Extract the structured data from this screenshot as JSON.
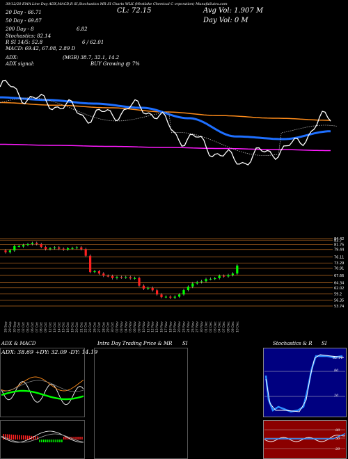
{
  "header": {
    "top_strip": "30/12/20  EMA Line Day ADX,MACD,R  SI,Stochastics MR  SI Charts WLK  (Westlake  Chemical C  orporation) MunafaSutra.com",
    "close_label": "CL: 72.15",
    "avg_vol": "Avg Vol: 1.907 M",
    "day_vol": "Day Vol: 0   M",
    "ma20": "20  Day - 66.71",
    "ma50": "50  Day - 69.87",
    "ma200": "200  Day - 8",
    "ma200_val": "6.82",
    "stochastics": "Stochastics: 82.14",
    "rsi_line": "R                SI 14/5: 52.8",
    "rsi_right": "6 / 62.01",
    "macd": "MACD: 69.42, 67.08, 2.89 D",
    "adx": "ADX:",
    "adx_vals": "(MGB) 38.7, 32.1, 14.2",
    "adx_signal": "ADX  signal:",
    "buy_signal": "BUY Growing @ 7%"
  },
  "colors": {
    "ema20": "#ffffff",
    "ema50": "#1e6fff",
    "ema100": "#ff8c1a",
    "ema200": "#ff1aff",
    "bull": "#00ff00",
    "bear": "#ff2020",
    "level": "#b86a20"
  },
  "chart_data": [
    {
      "type": "line",
      "name": "price-ema",
      "x_count": 120,
      "series": [
        {
          "name": "EMA200",
          "values": [
            65,
            64.8,
            64.6,
            64.4,
            64.2,
            64,
            63.8
          ]
        },
        {
          "name": "EMA100",
          "values": [
            73,
            72.5,
            72,
            71.2,
            70.5,
            70,
            69.6
          ]
        },
        {
          "name": "EMA50",
          "values": [
            74,
            73.5,
            72.8,
            72,
            70,
            66.5,
            66,
            67.5
          ]
        },
        {
          "name": "EMA20",
          "values": [
            76,
            73,
            70.5,
            72,
            66,
            62,
            64,
            70
          ]
        }
      ]
    },
    {
      "type": "candlestick",
      "name": "daily-candles",
      "categories": [
        "26 Sep",
        "29 Sep",
        "30 Sep",
        "01 Oct",
        "02 Oct",
        "05 Oct",
        "06 Oct",
        "07 Oct",
        "08 Oct",
        "09 Oct",
        "12 Oct",
        "13 Oct",
        "14 Oct",
        "15 Oct",
        "16 Oct",
        "19 Oct",
        "20 Oct",
        "21 Oct",
        "22 Oct",
        "23 Oct",
        "26 Oct",
        "27 Oct",
        "28 Oct",
        "29 Oct",
        "30 Oct",
        "02 Nov",
        "03 Nov",
        "04 Nov",
        "05 Nov",
        "06 Nov",
        "09 Nov",
        "10 Nov",
        "11 Nov",
        "12 Nov",
        "13 Nov",
        "16 Nov",
        "17 Nov",
        "18 Nov",
        "19 Nov",
        "20 Nov",
        "23 Nov",
        "24 Nov",
        "25 Nov",
        "27 Nov",
        "30 Nov",
        "01 Dec",
        "02 Dec",
        "03 Dec",
        "04 Dec",
        "07 Dec",
        "08 Dec",
        "09 Dec",
        "10 Dec"
      ],
      "open": [
        79.0,
        78.2,
        79.0,
        81.0,
        80.8,
        81.5,
        81.9,
        82.4,
        81.9,
        80.6,
        79.6,
        80.0,
        80.4,
        79.8,
        79.4,
        80.0,
        80.1,
        80.4,
        79.6,
        76.6,
        69.2,
        69.6,
        68.5,
        67.5,
        67.4,
        66.4,
        66.9,
        66.7,
        66.9,
        66.3,
        66.5,
        63.0,
        61.6,
        62.0,
        60.9,
        59.0,
        57.8,
        58.0,
        57.5,
        58.0,
        59.0,
        61.0,
        62.5,
        64.0,
        64.6,
        65.0,
        66.0,
        66.1,
        66.4,
        67.5,
        67.2,
        67.8,
        68.5
      ],
      "close": [
        78.2,
        79.0,
        81.0,
        81.0,
        81.5,
        81.9,
        82.4,
        81.9,
        80.6,
        79.6,
        80.0,
        80.4,
        79.8,
        79.4,
        80.0,
        80.1,
        80.4,
        79.6,
        76.6,
        69.2,
        69.6,
        68.5,
        67.5,
        67.4,
        66.4,
        66.9,
        66.7,
        66.9,
        66.3,
        66.5,
        63.0,
        61.6,
        62.0,
        60.9,
        59.0,
        57.8,
        58.0,
        57.5,
        58.0,
        59.0,
        61.0,
        62.5,
        64.0,
        64.6,
        65.0,
        66.0,
        66.1,
        66.4,
        67.5,
        67.2,
        67.8,
        68.5,
        72.15
      ]
    },
    {
      "type": "table",
      "name": "price-levels",
      "values": [
        84.42,
        83.7,
        81.75,
        79.44,
        76.11,
        73.29,
        70.91,
        67.66,
        64.34,
        62.02,
        59.2,
        56.35,
        53.74
      ]
    }
  ],
  "panels": {
    "adx_title": "ADX  & MACD",
    "adx_readout": "ADX: 38.69 +DY: 32.09 -DY: 14.19",
    "intraday_title": "Intra  Day Trading Price  & MR",
    "intraday_si": "SI",
    "stoch_title": "Stochastics & R",
    "stoch_si": "SI",
    "stoch_levels": [
      "80",
      "20"
    ],
    "rsi_levels": [
      "80",
      "50",
      "20"
    ],
    "stoch_value": "82.14"
  }
}
